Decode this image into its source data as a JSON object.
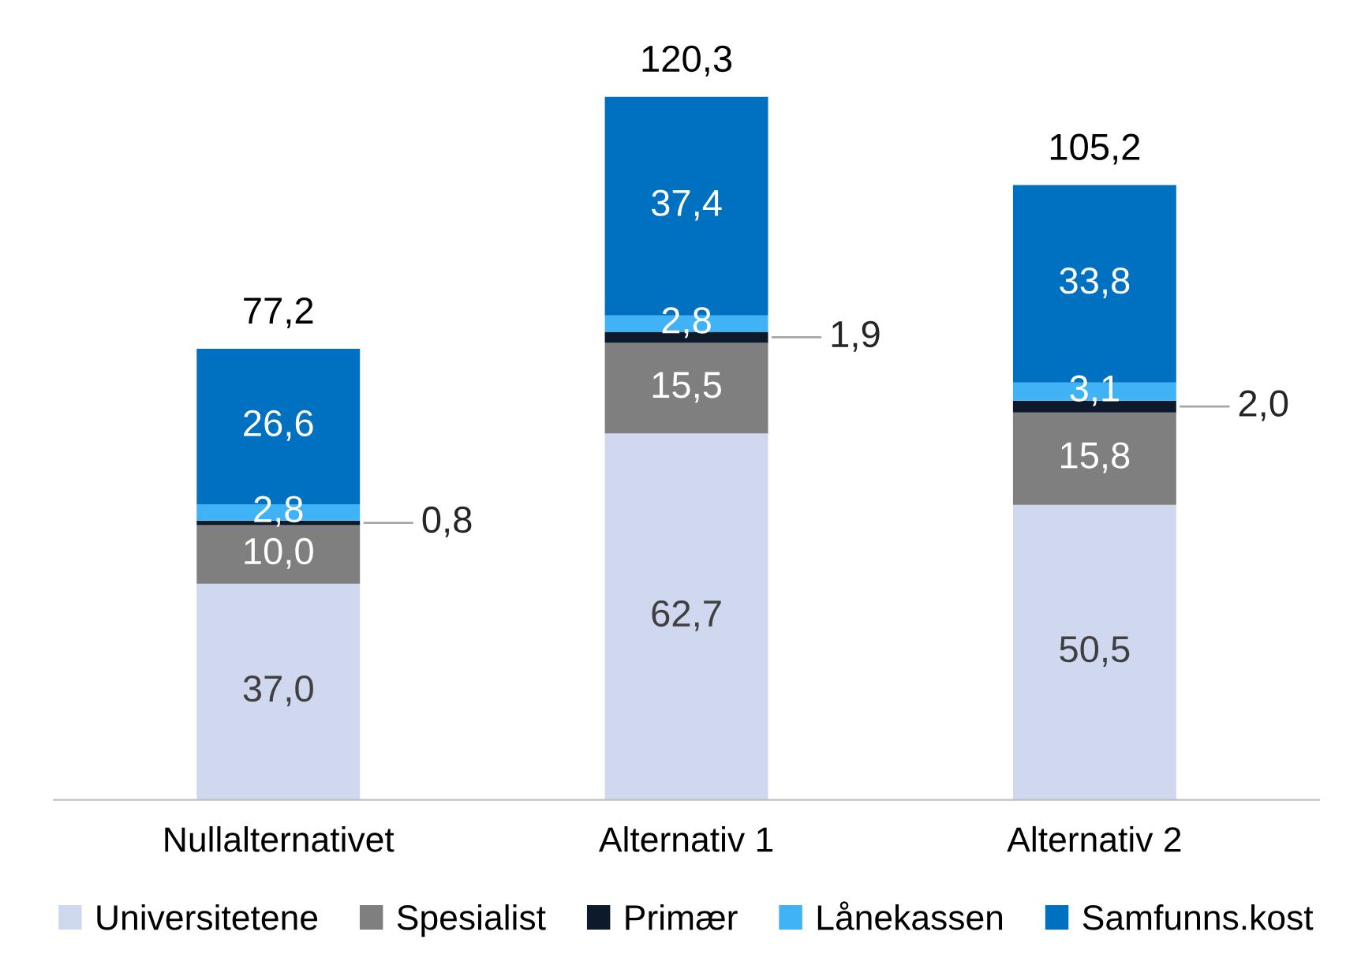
{
  "chart_data": {
    "type": "bar",
    "stacked": true,
    "categories": [
      "Nullalternativet",
      "Alternativ 1",
      "Alternativ 2"
    ],
    "series": [
      {
        "name": "Universitetene",
        "color": "#cfd8ef",
        "values": [
          37.0,
          62.7,
          50.5
        ],
        "value_labels": [
          "37,0",
          "62,7",
          "50,5"
        ]
      },
      {
        "name": "Spesialist",
        "color": "#7f7f7f",
        "values": [
          10.0,
          15.5,
          15.8
        ],
        "value_labels": [
          "10,0",
          "15,5",
          "15,8"
        ]
      },
      {
        "name": "Primær",
        "color": "#0d1a2b",
        "values": [
          0.8,
          1.9,
          2.0
        ],
        "value_labels": [
          "0,8",
          "1,9",
          "2,0"
        ]
      },
      {
        "name": "Lånekassen",
        "color": "#3fb3f5",
        "values": [
          2.8,
          2.8,
          3.1
        ],
        "value_labels": [
          "2,8",
          "2,8",
          "3,1"
        ]
      },
      {
        "name": "Samfunns.kost",
        "color": "#0070c0",
        "values": [
          26.6,
          37.4,
          33.8
        ],
        "value_labels": [
          "26,6",
          "37,4",
          "33,8"
        ]
      }
    ],
    "totals": [
      "77,2",
      "120,3",
      "105,2"
    ],
    "legend": "bottom",
    "grid": false
  }
}
